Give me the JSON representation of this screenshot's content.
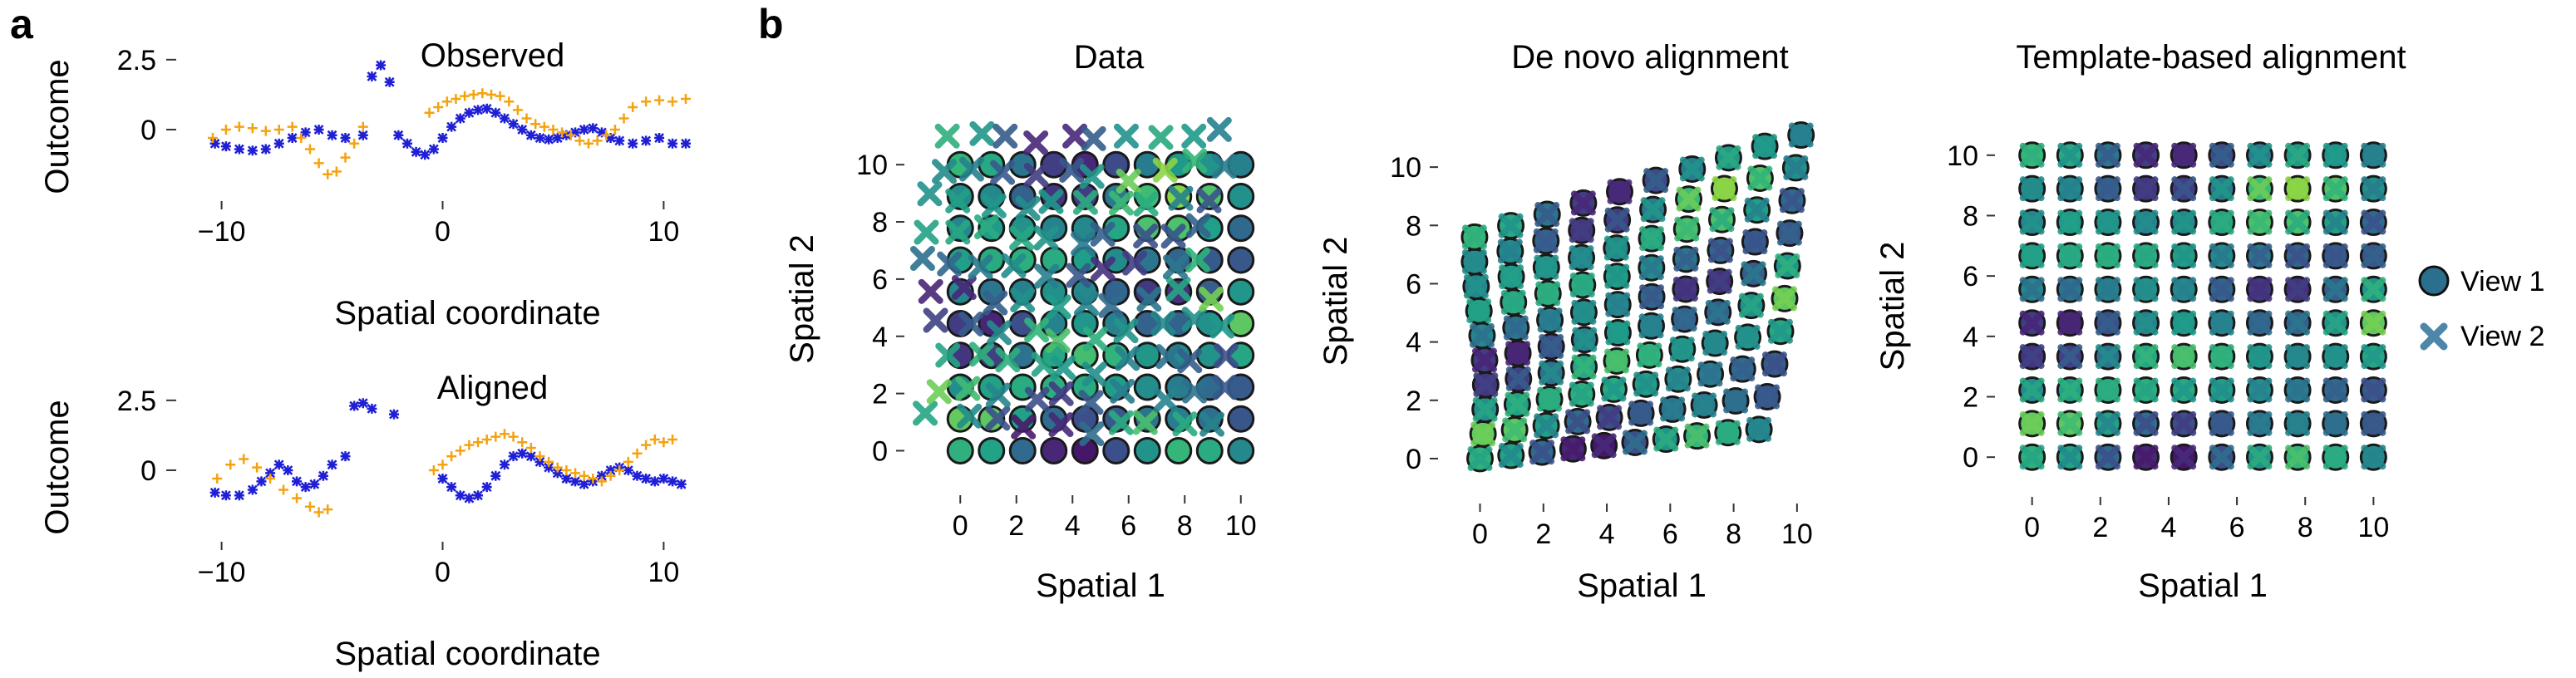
{
  "panels": {
    "a": "a",
    "b": "b"
  },
  "colors": {
    "view1_a": "#1f1fd6",
    "view2_a": "#f5a20f",
    "axis": "#333333"
  },
  "chart_data": [
    {
      "type": "scatter",
      "title": "Observed",
      "xlabel": "Spatial coordinate",
      "ylabel": "Outcome",
      "xlim": [
        -11,
        11
      ],
      "ylim": [
        -2.2,
        3.0
      ],
      "xticks": [
        -10,
        0,
        10
      ],
      "xtick_labels": [
        "−10",
        "0",
        "10"
      ],
      "yticks": [
        0,
        2.5
      ],
      "ytick_labels": [
        "0",
        "2.5"
      ],
      "series": [
        {
          "marker": "star",
          "color": "#1f1fd6",
          "x": [
            -10.3,
            -9.8,
            -9.2,
            -8.6,
            -8.0,
            -7.4,
            -6.8,
            -6.2,
            -5.6,
            -5.0,
            -4.4,
            -3.6,
            -3.2,
            -2.8,
            -2.4,
            -2.0,
            -1.6,
            -1.2,
            -0.8,
            -0.4,
            0.0,
            0.4,
            0.8,
            1.2,
            1.6,
            2.0,
            2.4,
            2.8,
            3.2,
            3.6,
            4.0,
            4.4,
            4.8,
            5.2,
            5.6,
            6.0,
            6.4,
            6.8,
            7.2,
            7.6,
            8.0,
            8.6,
            9.2,
            9.8,
            10.4,
            11.0
          ],
          "y": [
            -0.5,
            -0.6,
            -0.7,
            -0.75,
            -0.7,
            -0.5,
            -0.3,
            -0.1,
            0.0,
            -0.2,
            -0.3,
            -0.2,
            1.9,
            2.3,
            1.7,
            -0.2,
            -0.5,
            -0.8,
            -0.9,
            -0.7,
            -0.3,
            0.1,
            0.4,
            0.6,
            0.7,
            0.75,
            0.6,
            0.4,
            0.2,
            0.0,
            -0.2,
            -0.3,
            -0.35,
            -0.3,
            -0.2,
            -0.1,
            0.0,
            0.05,
            -0.1,
            -0.3,
            -0.4,
            -0.5,
            -0.4,
            -0.3,
            -0.5,
            -0.5
          ]
        },
        {
          "marker": "plus",
          "color": "#f5a20f",
          "x": [
            -10.4,
            -9.8,
            -9.2,
            -8.6,
            -8.0,
            -7.4,
            -6.8,
            -6.4,
            -6.0,
            -5.6,
            -5.2,
            -4.8,
            -4.4,
            -4.0,
            -3.6,
            -0.6,
            -0.2,
            0.2,
            0.6,
            1.0,
            1.4,
            1.8,
            2.2,
            2.6,
            3.0,
            3.4,
            3.8,
            4.2,
            4.6,
            5.0,
            5.4,
            5.8,
            6.2,
            6.6,
            7.0,
            7.4,
            7.8,
            8.2,
            8.6,
            9.2,
            9.8,
            10.4,
            11.0
          ],
          "y": [
            -0.3,
            0.0,
            0.1,
            0.05,
            -0.05,
            0.0,
            0.1,
            -0.3,
            -0.7,
            -1.2,
            -1.6,
            -1.5,
            -1.0,
            -0.5,
            0.1,
            0.6,
            0.8,
            1.0,
            1.1,
            1.2,
            1.25,
            1.3,
            1.25,
            1.2,
            1.0,
            0.7,
            0.4,
            0.2,
            0.1,
            0.0,
            -0.1,
            -0.2,
            -0.4,
            -0.5,
            -0.4,
            -0.2,
            0.0,
            0.4,
            0.8,
            1.0,
            1.05,
            1.0,
            1.1
          ]
        }
      ]
    },
    {
      "type": "scatter",
      "title": "Aligned",
      "xlabel": "Spatial coordinate",
      "ylabel": "Outcome",
      "xlim": [
        -11,
        11
      ],
      "ylim": [
        -2.2,
        3.0
      ],
      "xticks": [
        -10,
        0,
        10
      ],
      "xtick_labels": [
        "−10",
        "0",
        "10"
      ],
      "yticks": [
        0,
        2.5
      ],
      "ytick_labels": [
        "0",
        "2.5"
      ],
      "series": [
        {
          "marker": "star",
          "color": "#1f1fd6",
          "x": [
            -10.3,
            -9.8,
            -9.2,
            -8.6,
            -8.2,
            -7.8,
            -7.4,
            -7.0,
            -6.6,
            -6.2,
            -5.8,
            -5.4,
            -5.0,
            -4.4,
            -4.0,
            -3.6,
            -3.2,
            -2.2,
            0.0,
            0.4,
            0.8,
            1.2,
            1.6,
            2.0,
            2.4,
            2.8,
            3.2,
            3.6,
            4.0,
            4.4,
            4.8,
            5.2,
            5.6,
            6.0,
            6.4,
            6.8,
            7.2,
            7.6,
            8.0,
            8.4,
            8.8,
            9.2,
            9.6,
            10.0,
            10.4,
            10.8
          ],
          "y": [
            -0.8,
            -0.9,
            -0.9,
            -0.7,
            -0.4,
            -0.1,
            0.2,
            0.0,
            -0.4,
            -0.6,
            -0.5,
            -0.2,
            0.2,
            0.5,
            2.3,
            2.4,
            2.2,
            2.0,
            -0.3,
            -0.6,
            -0.9,
            -1.0,
            -0.9,
            -0.6,
            -0.2,
            0.2,
            0.5,
            0.6,
            0.5,
            0.3,
            0.1,
            -0.1,
            -0.3,
            -0.4,
            -0.5,
            -0.4,
            -0.2,
            0.0,
            0.1,
            0.0,
            -0.2,
            -0.3,
            -0.4,
            -0.3,
            -0.4,
            -0.5
          ]
        },
        {
          "marker": "plus",
          "color": "#f5a20f",
          "x": [
            -10.2,
            -9.6,
            -9.0,
            -8.4,
            -7.8,
            -7.2,
            -6.6,
            -6.0,
            -5.6,
            -5.2,
            -0.4,
            0.0,
            0.4,
            0.8,
            1.2,
            1.6,
            2.0,
            2.4,
            2.8,
            3.2,
            3.6,
            4.0,
            4.4,
            4.8,
            5.2,
            5.6,
            6.0,
            6.4,
            6.8,
            7.2,
            7.6,
            8.0,
            8.4,
            8.8,
            9.2,
            9.6,
            10.0,
            10.4
          ],
          "y": [
            -0.3,
            0.2,
            0.4,
            0.1,
            -0.3,
            -0.7,
            -1.0,
            -1.3,
            -1.5,
            -1.4,
            0.0,
            0.2,
            0.5,
            0.7,
            0.9,
            1.0,
            1.1,
            1.2,
            1.3,
            1.2,
            1.0,
            0.8,
            0.5,
            0.3,
            0.1,
            0.0,
            -0.1,
            -0.2,
            -0.3,
            -0.4,
            -0.2,
            0.0,
            0.3,
            0.6,
            0.9,
            1.1,
            1.0,
            1.1
          ]
        }
      ]
    },
    {
      "type": "scatter",
      "title": "Data",
      "xlabel": "Spatial 1",
      "ylabel": "Spatial 2",
      "xlim": [
        -1.4,
        11.4
      ],
      "ylim": [
        -0.8,
        11.4
      ],
      "xticks": [
        0,
        2,
        4,
        6,
        8,
        10
      ],
      "yticks": [
        0,
        2,
        4,
        6,
        8,
        10
      ],
      "series": [
        {
          "name": "View 1",
          "marker": "circle",
          "grid": "regular 0..10 step 1.11",
          "jitter": 0.0
        },
        {
          "name": "View 2",
          "marker": "x",
          "grid": "shifted and jittered",
          "offset": [
            -1.2,
            0.6
          ],
          "jitter": 0.3
        }
      ]
    },
    {
      "type": "scatter",
      "title": "De novo alignment",
      "xlabel": "Spatial 1",
      "ylabel": "Spatial 2",
      "xlim": [
        -0.8,
        11.0
      ],
      "ylim": [
        -0.8,
        11.6
      ],
      "xticks": [
        0,
        2,
        4,
        6,
        8,
        10
      ],
      "yticks": [
        0,
        2,
        4,
        6,
        8,
        10
      ],
      "series": [
        {
          "name": "View 1",
          "marker": "circle"
        },
        {
          "name": "View 2",
          "marker": "x"
        }
      ]
    },
    {
      "type": "scatter",
      "title": "Template-based alignment",
      "xlabel": "Spatial 1",
      "ylabel": "Spatial 2",
      "xlim": [
        -0.6,
        10.6
      ],
      "ylim": [
        -0.6,
        10.6
      ],
      "xticks": [
        0,
        2,
        4,
        6,
        8,
        10
      ],
      "yticks": [
        0,
        2,
        4,
        6,
        8,
        10
      ],
      "series": [
        {
          "name": "View 1",
          "marker": "circle"
        },
        {
          "name": "View 2",
          "marker": "x"
        }
      ]
    }
  ],
  "legend": [
    {
      "label": "View 1",
      "marker": "circle",
      "color": "#2a6f8e"
    },
    {
      "label": "View 2",
      "marker": "x",
      "color": "#3e7aa0"
    }
  ],
  "colormap": "viridis"
}
